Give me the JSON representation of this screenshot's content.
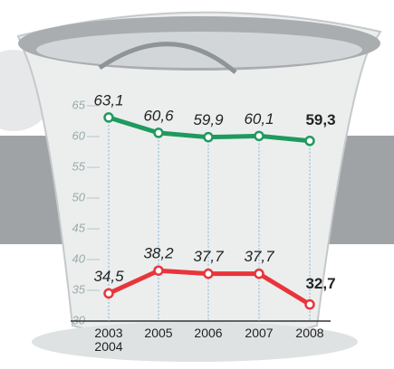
{
  "chart_data": {
    "type": "line",
    "categories": [
      "2003\n2004",
      "2005",
      "2006",
      "2007",
      "2008"
    ],
    "series": [
      {
        "color": "#1f9a5e",
        "values": [
          63.1,
          60.6,
          59.9,
          60.1,
          59.3
        ],
        "value_labels": [
          "63,1",
          "60,6",
          "59,9",
          "60,1",
          "59,3"
        ]
      },
      {
        "color": "#e8353b",
        "values": [
          34.5,
          38.2,
          37.7,
          37.7,
          32.7
        ],
        "value_labels": [
          "34,5",
          "38,2",
          "37,7",
          "37,7",
          "32,7"
        ]
      }
    ],
    "ylim": [
      30,
      66
    ],
    "yticks": [
      30,
      35,
      40,
      45,
      50,
      55,
      60,
      65
    ],
    "grid": true
  }
}
